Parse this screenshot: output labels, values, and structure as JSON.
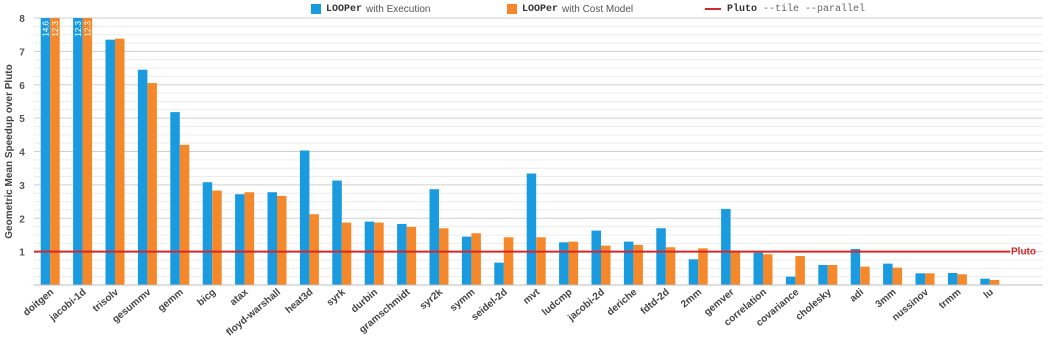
{
  "legend": {
    "exec": {
      "mono": "LOOPer",
      "text": "with Execution"
    },
    "cost": {
      "mono": "LOOPer",
      "text": "with Cost Model"
    },
    "pluto": {
      "mono": "Pluto",
      "text": "--tile --parallel"
    }
  },
  "colors": {
    "exec": "#1a9be0",
    "cost": "#f5882a",
    "pluto": "#d62728"
  },
  "chart_data": {
    "type": "bar",
    "ylabel": "Geometric Mean Speedup over Pluto",
    "ylim": [
      0,
      8
    ],
    "yticks": [
      1,
      2,
      3,
      4,
      5,
      6,
      7,
      8
    ],
    "grid": true,
    "legend_position": "top",
    "reference_line": {
      "value": 1,
      "label": "Pluto"
    },
    "categories": [
      "doitgen",
      "jacobi-1d",
      "trisolv",
      "gesummv",
      "gemm",
      "bicg",
      "atax",
      "floyd-warshall",
      "heat3d",
      "syrk",
      "durbin",
      "gramschmidt",
      "syr2k",
      "symm",
      "seidel-2d",
      "mvt",
      "ludcmp",
      "jacobi-2d",
      "deriche",
      "fdtd-2d",
      "2mm",
      "gemver",
      "correlation",
      "covariance",
      "cholesky",
      "adi",
      "3mm",
      "nussinov",
      "trmm",
      "lu"
    ],
    "series": [
      {
        "name": "LOOPer with Execution",
        "values": [
          14.6,
          12.3,
          7.35,
          6.45,
          5.18,
          3.08,
          2.72,
          2.78,
          4.03,
          3.13,
          1.9,
          1.83,
          2.87,
          1.45,
          0.67,
          3.34,
          1.28,
          1.63,
          1.3,
          1.7,
          0.77,
          2.28,
          0.97,
          0.25,
          0.6,
          1.08,
          0.64,
          0.35,
          0.36,
          0.19
        ],
        "value_labels": [
          "14.6",
          "12.3",
          "",
          "",
          "",
          "",
          "",
          "",
          "",
          "",
          "",
          "",
          "",
          "",
          "",
          "",
          "",
          "",
          "",
          "",
          "",
          "",
          "",
          "",
          "",
          "",
          "",
          "",
          "",
          ""
        ]
      },
      {
        "name": "LOOPer with Cost Model",
        "values": [
          12.3,
          12.3,
          7.38,
          6.05,
          4.2,
          2.83,
          2.78,
          2.67,
          2.12,
          1.87,
          1.87,
          1.74,
          1.7,
          1.55,
          1.43,
          1.43,
          1.3,
          1.18,
          1.2,
          1.13,
          1.1,
          1.03,
          0.92,
          0.87,
          0.6,
          0.55,
          0.52,
          0.35,
          0.32,
          0.15
        ],
        "value_labels": [
          "12.3",
          "12.3",
          "",
          "",
          "",
          "",
          "",
          "",
          "",
          "",
          "",
          "",
          "",
          "",
          "",
          "",
          "",
          "",
          "",
          "",
          "",
          "",
          "",
          "",
          "",
          "",
          "",
          "",
          "",
          ""
        ]
      }
    ]
  }
}
